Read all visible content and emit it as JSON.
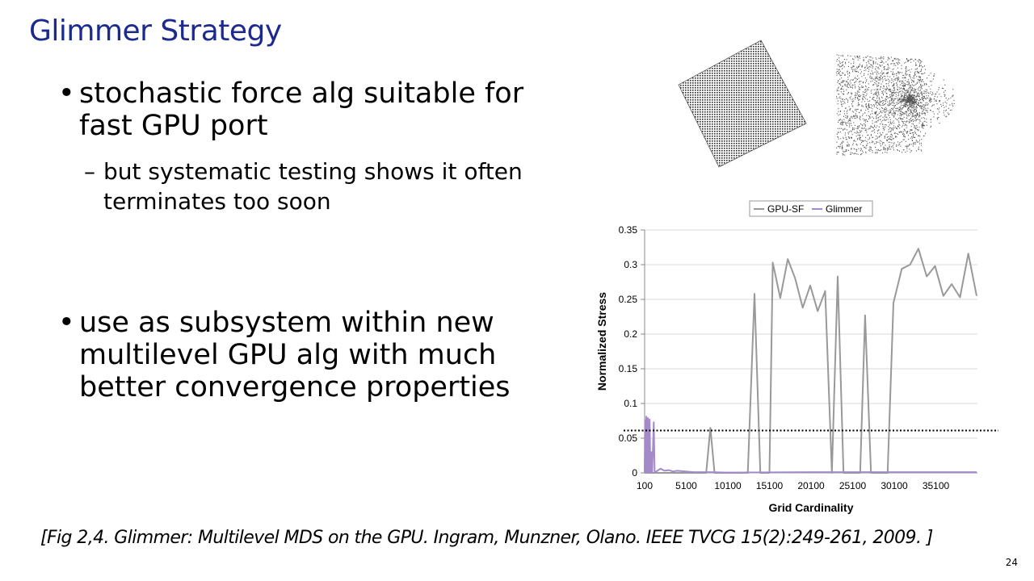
{
  "slide": {
    "title": "Glimmer Strategy",
    "bullets": [
      {
        "text": "stochastic force alg suitable for fast GPU port"
      },
      {
        "text": "but systematic testing shows it often terminates too soon"
      },
      {
        "text": "use as subsystem within new multilevel GPU alg with much better convergence properties"
      }
    ],
    "citation": "[Fig 2,4. Glimmer: Multilevel MDS on the GPU. Ingram, Munzner, Olano.  IEEE TVCG 15(2):249-261, 2009. ]",
    "page_number": "24"
  },
  "chart_data": {
    "type": "line",
    "title": "",
    "xlabel": "Grid Cardinality",
    "ylabel": "Normalized Stress",
    "ylim": [
      0,
      0.35
    ],
    "yticks": [
      "0",
      "0.05",
      "0.1",
      "0.15",
      "0.2",
      "0.25",
      "0.3",
      "0.35"
    ],
    "xticks": [
      {
        "label": "100",
        "x": 100
      },
      {
        "label": "5100",
        "x": 5100
      },
      {
        "label": "10100",
        "x": 10100
      },
      {
        "label": "15100",
        "x": 15100
      },
      {
        "label": "20100",
        "x": 20100
      },
      {
        "label": "25100",
        "x": 25100
      },
      {
        "label": "30100",
        "x": 30100
      },
      {
        "label": "35100",
        "x": 35100
      }
    ],
    "xlim": [
      100,
      40100
    ],
    "grid": "horizontal",
    "legend_position": "top",
    "reference_line": 0.061,
    "series": [
      {
        "name": "GPU-SF",
        "color": "#999999",
        "points": [
          [
            100,
            0
          ],
          [
            7500,
            0
          ],
          [
            8000,
            0.065
          ],
          [
            8500,
            0
          ],
          [
            12500,
            0
          ],
          [
            13300,
            0.258
          ],
          [
            14000,
            0
          ],
          [
            15100,
            0
          ],
          [
            15500,
            0.303
          ],
          [
            16400,
            0.252
          ],
          [
            17300,
            0.308
          ],
          [
            18200,
            0.28
          ],
          [
            19100,
            0.238
          ],
          [
            20000,
            0.27
          ],
          [
            20900,
            0.233
          ],
          [
            21800,
            0.262
          ],
          [
            22600,
            0
          ],
          [
            23300,
            0.283
          ],
          [
            24000,
            0
          ],
          [
            26000,
            0
          ],
          [
            26600,
            0.227
          ],
          [
            27300,
            0
          ],
          [
            29300,
            0
          ],
          [
            30000,
            0.245
          ],
          [
            31000,
            0.294
          ],
          [
            32000,
            0.3
          ],
          [
            33000,
            0.323
          ],
          [
            34000,
            0.283
          ],
          [
            35000,
            0.298
          ],
          [
            36000,
            0.255
          ],
          [
            37000,
            0.272
          ],
          [
            38000,
            0.253
          ],
          [
            39000,
            0.316
          ],
          [
            40000,
            0.255
          ]
        ]
      },
      {
        "name": "Glimmer",
        "color": "#a58ac9",
        "points": [
          [
            100,
            0
          ],
          [
            150,
            0.076
          ],
          [
            200,
            0
          ],
          [
            300,
            0.081
          ],
          [
            400,
            0
          ],
          [
            500,
            0.079
          ],
          [
            600,
            0
          ],
          [
            700,
            0.077
          ],
          [
            800,
            0
          ],
          [
            900,
            0.03
          ],
          [
            1000,
            0
          ],
          [
            1200,
            0.073
          ],
          [
            1300,
            0
          ],
          [
            1500,
            0.002
          ],
          [
            2000,
            0.006
          ],
          [
            2500,
            0.003
          ],
          [
            3000,
            0.004
          ],
          [
            3500,
            0.002
          ],
          [
            4000,
            0.003
          ],
          [
            5000,
            0.002
          ],
          [
            6000,
            0.001
          ],
          [
            8000,
            0.001
          ],
          [
            10000,
            0.0005
          ],
          [
            20000,
            0.001
          ],
          [
            30000,
            0.001
          ],
          [
            40000,
            0.001
          ]
        ]
      }
    ]
  }
}
